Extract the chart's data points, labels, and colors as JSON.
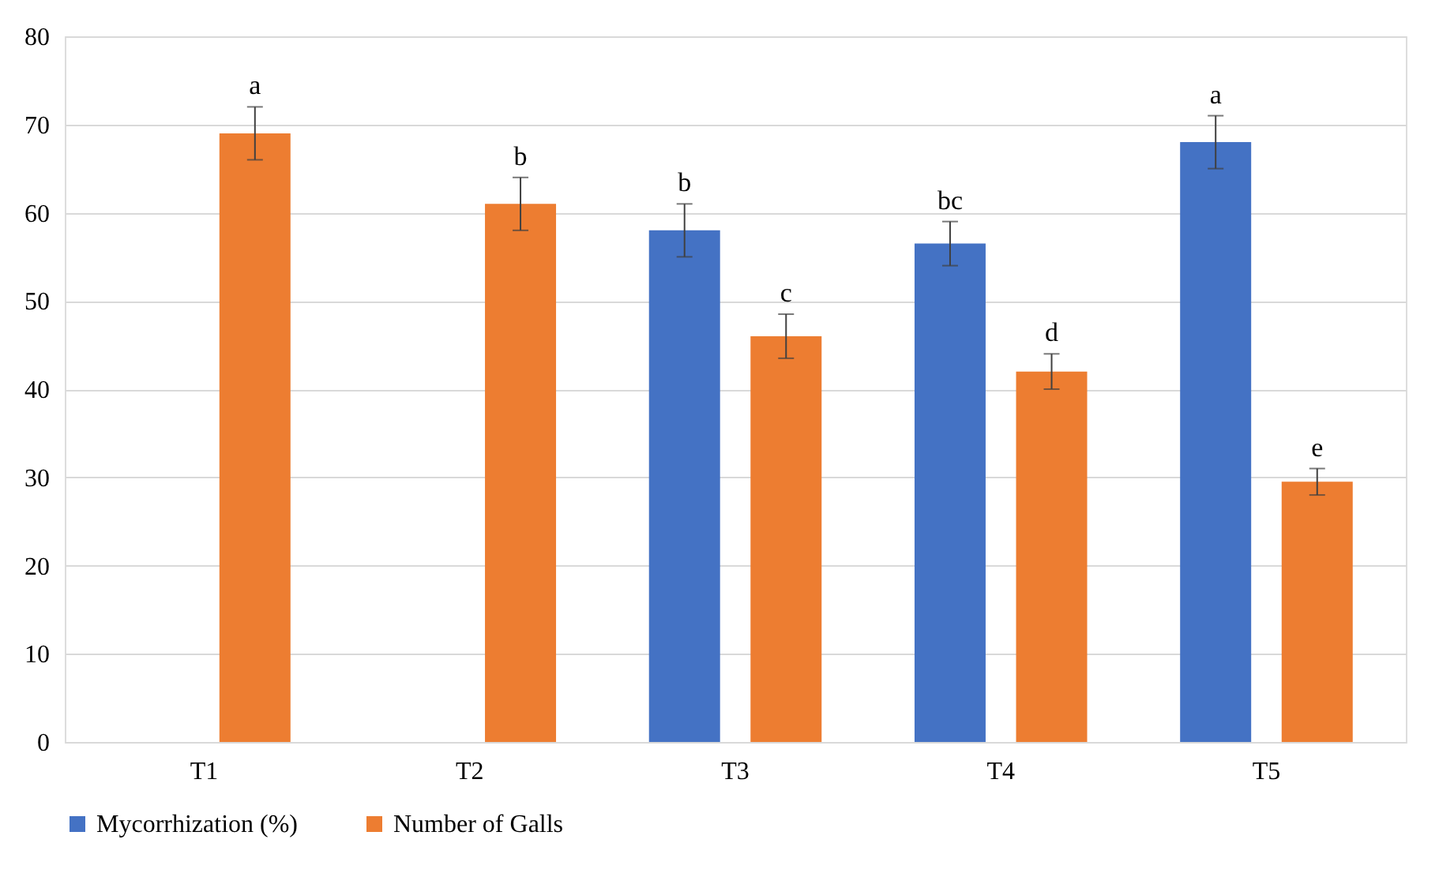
{
  "chart_data": {
    "type": "bar",
    "categories": [
      "T1",
      "T2",
      "T3",
      "T4",
      "T5"
    ],
    "series": [
      {
        "name": "Mycorrhization (%)",
        "color": "#4472c4",
        "values": [
          null,
          null,
          58,
          56.5,
          68
        ],
        "errors": [
          null,
          null,
          3,
          2.5,
          3
        ]
      },
      {
        "name": "Number of Galls",
        "color": "#ed7d31",
        "values": [
          69,
          61,
          46,
          42,
          29.5
        ],
        "errors": [
          3,
          3,
          2.5,
          2,
          1.5
        ]
      }
    ],
    "ylim": [
      0,
      80
    ],
    "yticks": [
      0,
      10,
      20,
      30,
      40,
      50,
      60,
      70,
      80
    ],
    "grid": "y",
    "legend": "bottom",
    "annotations": [
      "a",
      "b",
      "b",
      "c",
      "bc",
      "d",
      "a",
      "e"
    ]
  }
}
